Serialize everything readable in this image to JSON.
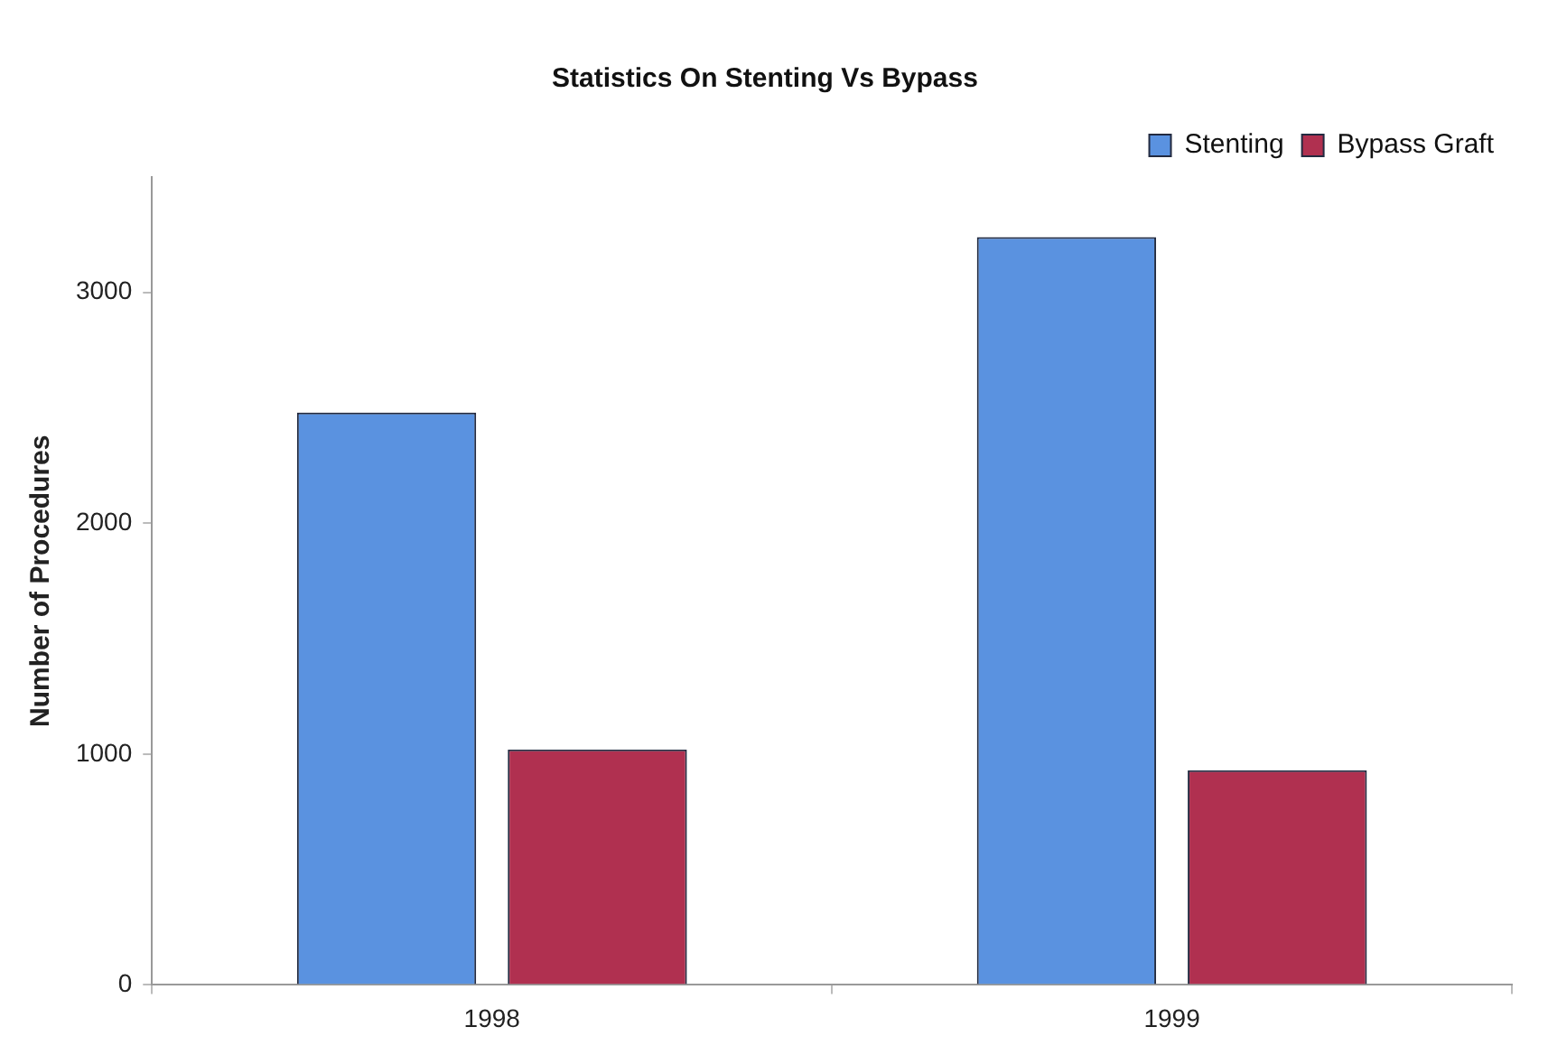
{
  "chart_data": {
    "type": "bar",
    "title": "Statistics On Stenting Vs Bypass",
    "ylabel": "Number of Procedures",
    "categories": [
      "1998",
      "1999"
    ],
    "series": [
      {
        "name": "Stenting",
        "color": "#5a92e0",
        "values": [
          2480,
          3240
        ]
      },
      {
        "name": "Bypass Graft",
        "color": "#b03050",
        "values": [
          1020,
          930
        ]
      }
    ],
    "ylim": [
      0,
      3500
    ],
    "yticks": [
      0,
      1000,
      2000,
      3000
    ],
    "grid": false,
    "legend": "top right"
  }
}
